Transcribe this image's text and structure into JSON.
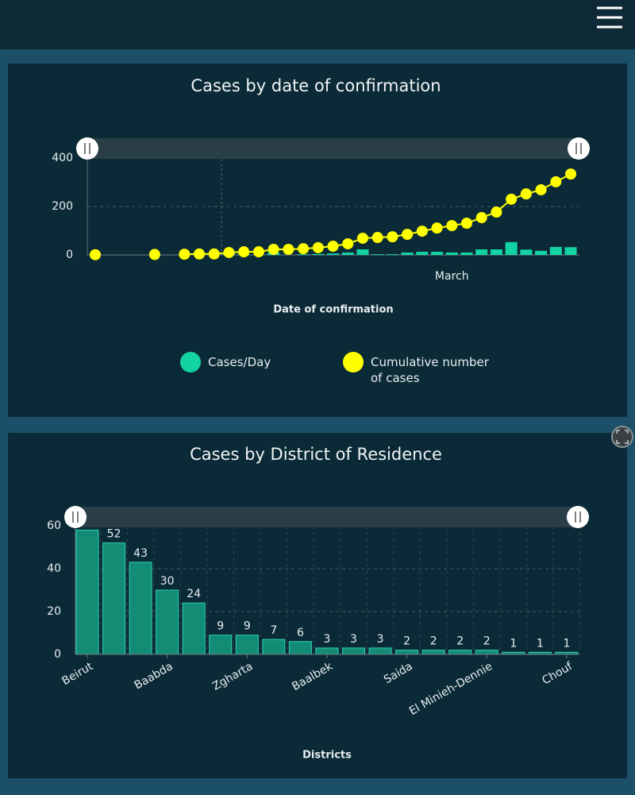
{
  "chart_data": [
    {
      "type": "combo",
      "title": "Cases by  date of confirmation",
      "xlabel": "Date of confirmation",
      "categories": [
        null,
        null,
        null,
        null,
        null,
        null,
        null,
        null,
        null,
        null,
        null,
        null,
        null,
        null,
        null,
        null,
        null,
        null,
        null,
        null,
        null,
        null,
        null,
        null,
        "March",
        null,
        null,
        null,
        null,
        null,
        null,
        null,
        null
      ],
      "series": [
        {
          "name": "Cases/Day",
          "type": "bar",
          "color": "#14d3a3",
          "values": [
            1,
            0,
            0,
            0,
            1,
            0,
            1,
            1,
            0,
            6,
            3,
            0,
            10,
            0,
            3,
            4,
            6,
            10,
            23,
            3,
            3,
            10,
            13,
            13,
            10,
            10,
            23,
            23,
            53,
            22,
            17,
            33,
            32
          ]
        },
        {
          "name": "Cumulative number of cases",
          "type": "line",
          "color": "#ffff00",
          "values": [
            1,
            null,
            null,
            null,
            2,
            null,
            3,
            4,
            4,
            10,
            13,
            13,
            23,
            23,
            26,
            30,
            36,
            46,
            69,
            72,
            75,
            85,
            98,
            111,
            121,
            131,
            154,
            177,
            230,
            252,
            269,
            302,
            334
          ]
        }
      ],
      "ylim": [
        0,
        400
      ],
      "yticks": [
        0,
        200,
        400
      ],
      "grid": true
    },
    {
      "type": "bar",
      "title": "Cases by District of Residence",
      "xlabel": "Districts",
      "categories": [
        "Beirut",
        null,
        null,
        "Baabda",
        null,
        null,
        "Zgharta",
        null,
        null,
        "Baalbek",
        null,
        null,
        "Saida",
        null,
        null,
        "El Minieh-Dennie",
        null,
        null,
        "Chouf"
      ],
      "values": [
        58,
        52,
        43,
        30,
        24,
        9,
        9,
        7,
        6,
        3,
        3,
        3,
        2,
        2,
        2,
        2,
        1,
        1,
        1
      ],
      "color": "#138c76",
      "ylim": [
        0,
        60
      ],
      "yticks": [
        0,
        20,
        40,
        60
      ],
      "grid": true
    }
  ]
}
